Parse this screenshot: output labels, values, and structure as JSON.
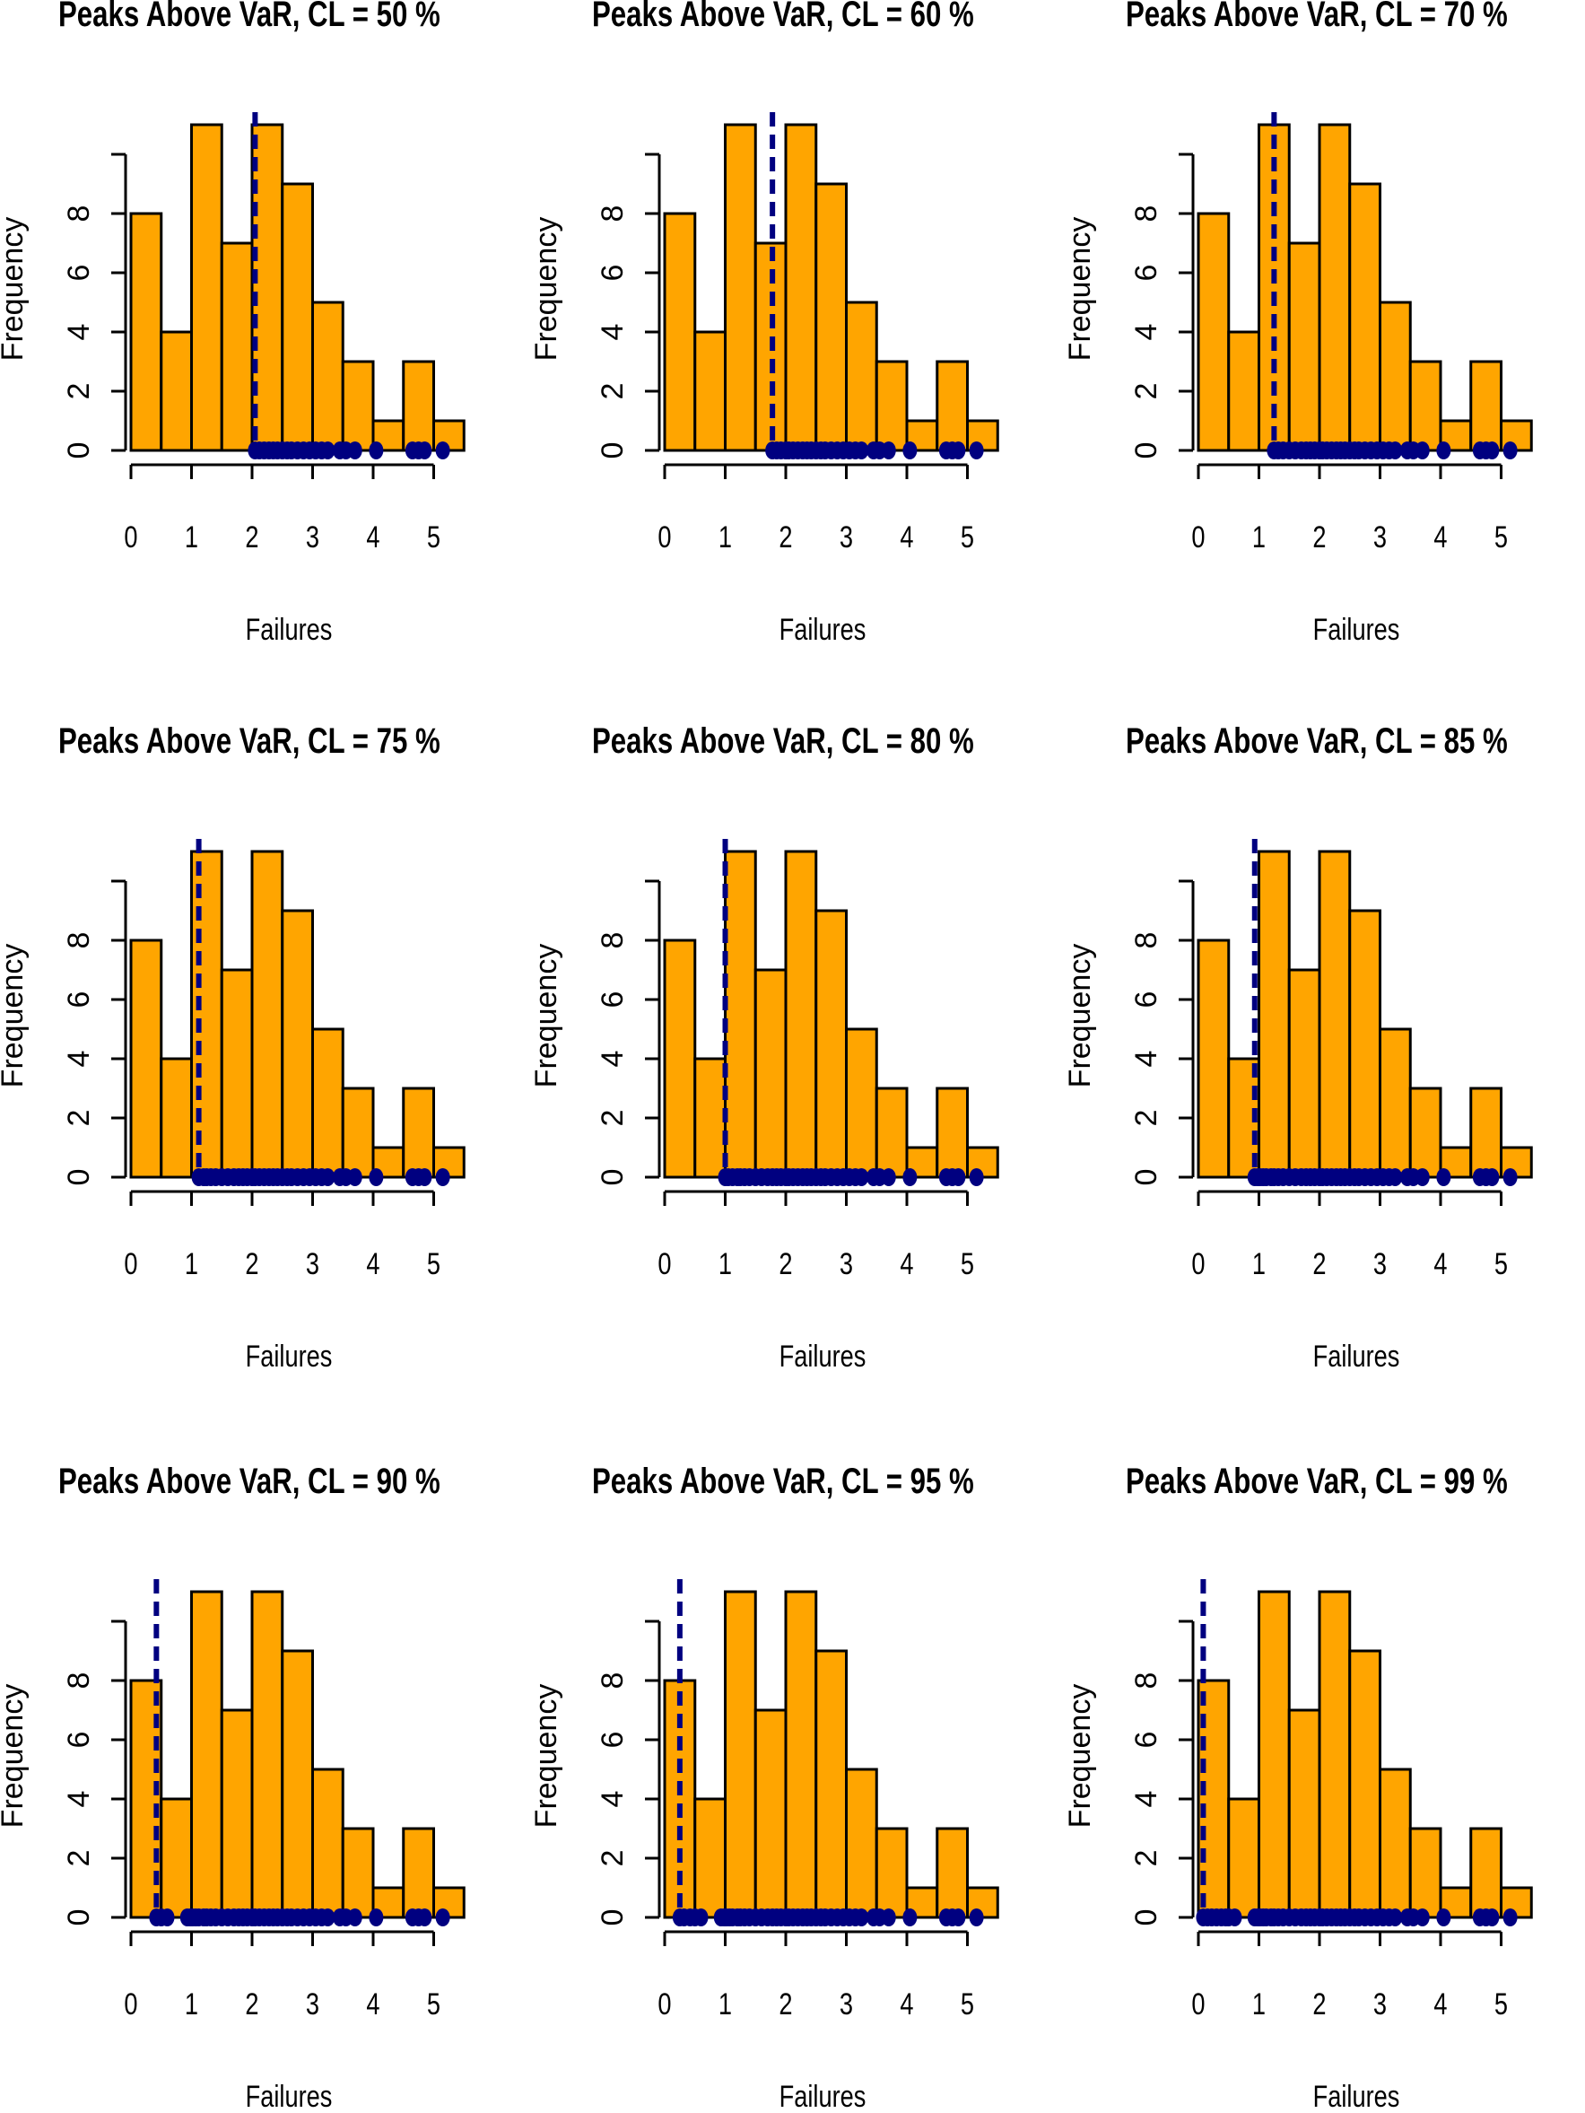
{
  "chart_data": [
    {
      "type": "histogram",
      "title": "Peaks Above VaR, CL = 50 %",
      "xlabel": "Failures",
      "ylabel": "Frequency",
      "bin_width": 0.5,
      "bin_starts": [
        0,
        0.5,
        1,
        1.5,
        2,
        2.5,
        3,
        3.5,
        4,
        4.5,
        5
      ],
      "frequencies": [
        8,
        4,
        11,
        7,
        11,
        9,
        5,
        3,
        1,
        3,
        1
      ],
      "var_line_x": 2.05,
      "rug_x": [
        2.05,
        2.12,
        2.2,
        2.28,
        2.35,
        2.42,
        2.5,
        2.58,
        2.65,
        2.75,
        2.85,
        2.95,
        3.05,
        3.15,
        3.25,
        3.45,
        3.55,
        3.7,
        4.05,
        4.65,
        4.75,
        4.85,
        5.15
      ],
      "xticks": [
        "0",
        "1",
        "2",
        "3",
        "4",
        "5"
      ],
      "yticks": [
        "0",
        "2",
        "4",
        "6",
        "8"
      ],
      "xlim": [
        0,
        5.3
      ],
      "ylim": [
        0,
        10
      ],
      "bar_color": "#FFA500",
      "line_color": "#000080"
    },
    {
      "type": "histogram",
      "title": "Peaks Above VaR, CL = 60 %",
      "xlabel": "Failures",
      "ylabel": "Frequency",
      "bin_width": 0.5,
      "bin_starts": [
        0,
        0.5,
        1,
        1.5,
        2,
        2.5,
        3,
        3.5,
        4,
        4.5,
        5
      ],
      "frequencies": [
        8,
        4,
        11,
        7,
        11,
        9,
        5,
        3,
        1,
        3,
        1
      ],
      "var_line_x": 1.78,
      "rug_x": [
        1.78,
        1.85,
        1.92,
        2.0,
        2.05,
        2.12,
        2.2,
        2.28,
        2.35,
        2.42,
        2.5,
        2.58,
        2.65,
        2.75,
        2.85,
        2.95,
        3.05,
        3.15,
        3.25,
        3.45,
        3.55,
        3.7,
        4.05,
        4.65,
        4.75,
        4.85,
        5.15
      ],
      "xticks": [
        "0",
        "1",
        "2",
        "3",
        "4",
        "5"
      ],
      "yticks": [
        "0",
        "2",
        "4",
        "6",
        "8"
      ],
      "xlim": [
        0,
        5.3
      ],
      "ylim": [
        0,
        10
      ],
      "bar_color": "#FFA500",
      "line_color": "#000080"
    },
    {
      "type": "histogram",
      "title": "Peaks Above VaR, CL = 70 %",
      "xlabel": "Failures",
      "ylabel": "Frequency",
      "bin_width": 0.5,
      "bin_starts": [
        0,
        0.5,
        1,
        1.5,
        2,
        2.5,
        3,
        3.5,
        4,
        4.5,
        5
      ],
      "frequencies": [
        8,
        4,
        11,
        7,
        11,
        9,
        5,
        3,
        1,
        3,
        1
      ],
      "var_line_x": 1.25,
      "rug_x": [
        1.25,
        1.32,
        1.4,
        1.5,
        1.6,
        1.7,
        1.78,
        1.85,
        1.92,
        2.0,
        2.05,
        2.12,
        2.2,
        2.28,
        2.35,
        2.42,
        2.5,
        2.58,
        2.65,
        2.75,
        2.85,
        2.95,
        3.05,
        3.15,
        3.25,
        3.45,
        3.55,
        3.7,
        4.05,
        4.65,
        4.75,
        4.85,
        5.15
      ],
      "xticks": [
        "0",
        "1",
        "2",
        "3",
        "4",
        "5"
      ],
      "yticks": [
        "0",
        "2",
        "4",
        "6",
        "8"
      ],
      "xlim": [
        0,
        5.3
      ],
      "ylim": [
        0,
        10
      ],
      "bar_color": "#FFA500",
      "line_color": "#000080"
    },
    {
      "type": "histogram",
      "title": "Peaks Above VaR, CL = 75 %",
      "xlabel": "Failures",
      "ylabel": "Frequency",
      "bin_width": 0.5,
      "bin_starts": [
        0,
        0.5,
        1,
        1.5,
        2,
        2.5,
        3,
        3.5,
        4,
        4.5,
        5
      ],
      "frequencies": [
        8,
        4,
        11,
        7,
        11,
        9,
        5,
        3,
        1,
        3,
        1
      ],
      "var_line_x": 1.12,
      "rug_x": [
        1.12,
        1.2,
        1.25,
        1.32,
        1.4,
        1.5,
        1.6,
        1.7,
        1.78,
        1.85,
        1.92,
        2.0,
        2.05,
        2.12,
        2.2,
        2.28,
        2.35,
        2.42,
        2.5,
        2.58,
        2.65,
        2.75,
        2.85,
        2.95,
        3.05,
        3.15,
        3.25,
        3.45,
        3.55,
        3.7,
        4.05,
        4.65,
        4.75,
        4.85,
        5.15
      ],
      "xticks": [
        "0",
        "1",
        "2",
        "3",
        "4",
        "5"
      ],
      "yticks": [
        "0",
        "2",
        "4",
        "6",
        "8"
      ],
      "xlim": [
        0,
        5.3
      ],
      "ylim": [
        0,
        10
      ],
      "bar_color": "#FFA500",
      "line_color": "#000080"
    },
    {
      "type": "histogram",
      "title": "Peaks Above VaR, CL = 80 %",
      "xlabel": "Failures",
      "ylabel": "Frequency",
      "bin_width": 0.5,
      "bin_starts": [
        0,
        0.5,
        1,
        1.5,
        2,
        2.5,
        3,
        3.5,
        4,
        4.5,
        5
      ],
      "frequencies": [
        8,
        4,
        11,
        7,
        11,
        9,
        5,
        3,
        1,
        3,
        1
      ],
      "var_line_x": 1.0,
      "rug_x": [
        1.0,
        1.05,
        1.12,
        1.2,
        1.25,
        1.32,
        1.4,
        1.5,
        1.6,
        1.7,
        1.78,
        1.85,
        1.92,
        2.0,
        2.05,
        2.12,
        2.2,
        2.28,
        2.35,
        2.42,
        2.5,
        2.58,
        2.65,
        2.75,
        2.85,
        2.95,
        3.05,
        3.15,
        3.25,
        3.45,
        3.55,
        3.7,
        4.05,
        4.65,
        4.75,
        4.85,
        5.15
      ],
      "xticks": [
        "0",
        "1",
        "2",
        "3",
        "4",
        "5"
      ],
      "yticks": [
        "0",
        "2",
        "4",
        "6",
        "8"
      ],
      "xlim": [
        0,
        5.3
      ],
      "ylim": [
        0,
        10
      ],
      "bar_color": "#FFA500",
      "line_color": "#000080"
    },
    {
      "type": "histogram",
      "title": "Peaks Above VaR, CL = 85 %",
      "xlabel": "Failures",
      "ylabel": "Frequency",
      "bin_width": 0.5,
      "bin_starts": [
        0,
        0.5,
        1,
        1.5,
        2,
        2.5,
        3,
        3.5,
        4,
        4.5,
        5
      ],
      "frequencies": [
        8,
        4,
        11,
        7,
        11,
        9,
        5,
        3,
        1,
        3,
        1
      ],
      "var_line_x": 0.93,
      "rug_x": [
        0.93,
        0.98,
        1.02,
        1.07,
        1.12,
        1.2,
        1.25,
        1.32,
        1.4,
        1.5,
        1.6,
        1.7,
        1.78,
        1.85,
        1.92,
        2.0,
        2.05,
        2.12,
        2.2,
        2.28,
        2.35,
        2.42,
        2.5,
        2.58,
        2.65,
        2.75,
        2.85,
        2.95,
        3.05,
        3.15,
        3.25,
        3.45,
        3.55,
        3.7,
        4.05,
        4.65,
        4.75,
        4.85,
        5.15
      ],
      "xticks": [
        "0",
        "1",
        "2",
        "3",
        "4",
        "5"
      ],
      "yticks": [
        "0",
        "2",
        "4",
        "6",
        "8"
      ],
      "xlim": [
        0,
        5.3
      ],
      "ylim": [
        0,
        10
      ],
      "bar_color": "#FFA500",
      "line_color": "#000080"
    },
    {
      "type": "histogram",
      "title": "Peaks Above VaR, CL = 90 %",
      "xlabel": "Failures",
      "ylabel": "Frequency",
      "bin_width": 0.5,
      "bin_starts": [
        0,
        0.5,
        1,
        1.5,
        2,
        2.5,
        3,
        3.5,
        4,
        4.5,
        5
      ],
      "frequencies": [
        8,
        4,
        11,
        7,
        11,
        9,
        5,
        3,
        1,
        3,
        1
      ],
      "var_line_x": 0.42,
      "rug_x": [
        0.42,
        0.5,
        0.6,
        0.93,
        0.98,
        1.02,
        1.07,
        1.12,
        1.2,
        1.25,
        1.32,
        1.4,
        1.5,
        1.6,
        1.7,
        1.78,
        1.85,
        1.92,
        2.0,
        2.05,
        2.12,
        2.2,
        2.28,
        2.35,
        2.42,
        2.5,
        2.58,
        2.65,
        2.75,
        2.85,
        2.95,
        3.05,
        3.15,
        3.25,
        3.45,
        3.55,
        3.7,
        4.05,
        4.65,
        4.75,
        4.85,
        5.15
      ],
      "xticks": [
        "0",
        "1",
        "2",
        "3",
        "4",
        "5"
      ],
      "yticks": [
        "0",
        "2",
        "4",
        "6",
        "8"
      ],
      "xlim": [
        0,
        5.3
      ],
      "ylim": [
        0,
        10
      ],
      "bar_color": "#FFA500",
      "line_color": "#000080"
    },
    {
      "type": "histogram",
      "title": "Peaks Above VaR, CL = 95 %",
      "xlabel": "Failures",
      "ylabel": "Frequency",
      "bin_width": 0.5,
      "bin_starts": [
        0,
        0.5,
        1,
        1.5,
        2,
        2.5,
        3,
        3.5,
        4,
        4.5,
        5
      ],
      "frequencies": [
        8,
        4,
        11,
        7,
        11,
        9,
        5,
        3,
        1,
        3,
        1
      ],
      "var_line_x": 0.25,
      "rug_x": [
        0.25,
        0.32,
        0.42,
        0.5,
        0.6,
        0.93,
        0.98,
        1.02,
        1.07,
        1.12,
        1.2,
        1.25,
        1.32,
        1.4,
        1.5,
        1.6,
        1.7,
        1.78,
        1.85,
        1.92,
        2.0,
        2.05,
        2.12,
        2.2,
        2.28,
        2.35,
        2.42,
        2.5,
        2.58,
        2.65,
        2.75,
        2.85,
        2.95,
        3.05,
        3.15,
        3.25,
        3.45,
        3.55,
        3.7,
        4.05,
        4.65,
        4.75,
        4.85,
        5.15
      ],
      "xticks": [
        "0",
        "1",
        "2",
        "3",
        "4",
        "5"
      ],
      "yticks": [
        "0",
        "2",
        "4",
        "6",
        "8"
      ],
      "xlim": [
        0,
        5.3
      ],
      "ylim": [
        0,
        10
      ],
      "bar_color": "#FFA500",
      "line_color": "#000080"
    },
    {
      "type": "histogram",
      "title": "Peaks Above VaR, CL = 99 %",
      "xlabel": "Failures",
      "ylabel": "Frequency",
      "bin_width": 0.5,
      "bin_starts": [
        0,
        0.5,
        1,
        1.5,
        2,
        2.5,
        3,
        3.5,
        4,
        4.5,
        5
      ],
      "frequencies": [
        8,
        4,
        11,
        7,
        11,
        9,
        5,
        3,
        1,
        3,
        1
      ],
      "var_line_x": 0.08,
      "rug_x": [
        0.08,
        0.15,
        0.22,
        0.3,
        0.38,
        0.45,
        0.5,
        0.6,
        0.93,
        0.98,
        1.02,
        1.07,
        1.12,
        1.2,
        1.25,
        1.32,
        1.4,
        1.5,
        1.6,
        1.7,
        1.78,
        1.85,
        1.92,
        2.0,
        2.05,
        2.12,
        2.2,
        2.28,
        2.35,
        2.42,
        2.5,
        2.58,
        2.65,
        2.75,
        2.85,
        2.95,
        3.05,
        3.15,
        3.25,
        3.45,
        3.55,
        3.7,
        4.05,
        4.65,
        4.75,
        4.85,
        5.15
      ],
      "xticks": [
        "0",
        "1",
        "2",
        "3",
        "4",
        "5"
      ],
      "yticks": [
        "0",
        "2",
        "4",
        "6",
        "8"
      ],
      "xlim": [
        0,
        5.3
      ],
      "ylim": [
        0,
        10
      ],
      "bar_color": "#FFA500",
      "line_color": "#000080"
    }
  ]
}
